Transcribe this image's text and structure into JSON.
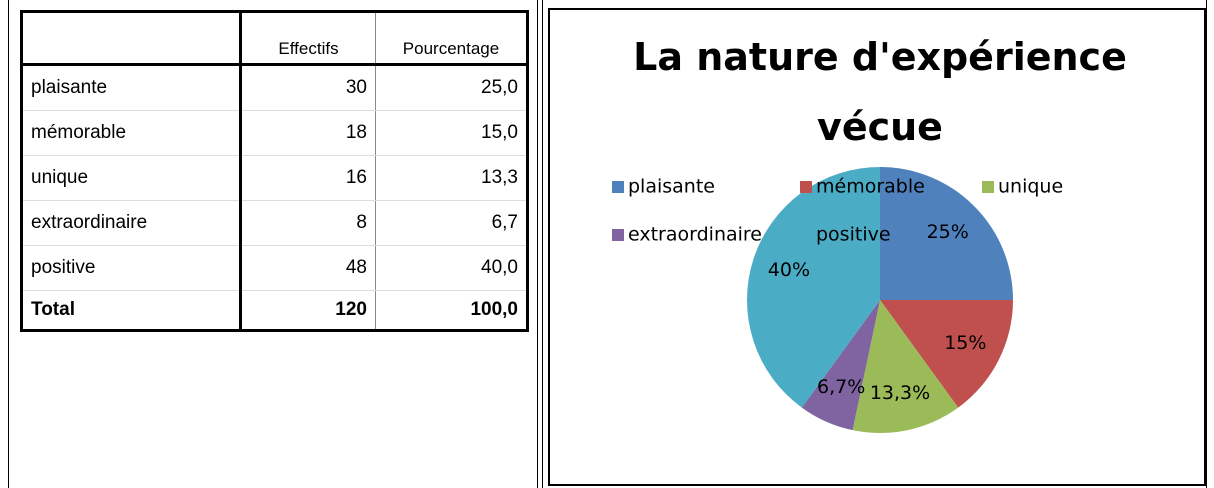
{
  "table": {
    "header": [
      "",
      "Effectifs",
      "Pourcentage"
    ],
    "rows": [
      [
        "plaisante",
        "30",
        "25,0"
      ],
      [
        "mémorable",
        "18",
        "15,0"
      ],
      [
        "unique",
        "16",
        "13,3"
      ],
      [
        "extraordinaire",
        "8",
        "6,7"
      ],
      [
        "positive",
        "48",
        "40,0"
      ],
      [
        "Total",
        "120",
        "100,0"
      ]
    ]
  },
  "chart_data": {
    "type": "pie",
    "title": "La nature d'expérience vécue",
    "categories": [
      "plaisante",
      "mémorable",
      "unique",
      "extraordinaire",
      "positive"
    ],
    "values": [
      25,
      15,
      13.3,
      6.7,
      40
    ],
    "value_labels": [
      "25%",
      "15%",
      "13,3%",
      "6,7%",
      "40%"
    ],
    "colors": [
      "#4f81bd",
      "#c0504d",
      "#9bbb59",
      "#8064a2",
      "#4bacc6"
    ],
    "legend": "top"
  }
}
